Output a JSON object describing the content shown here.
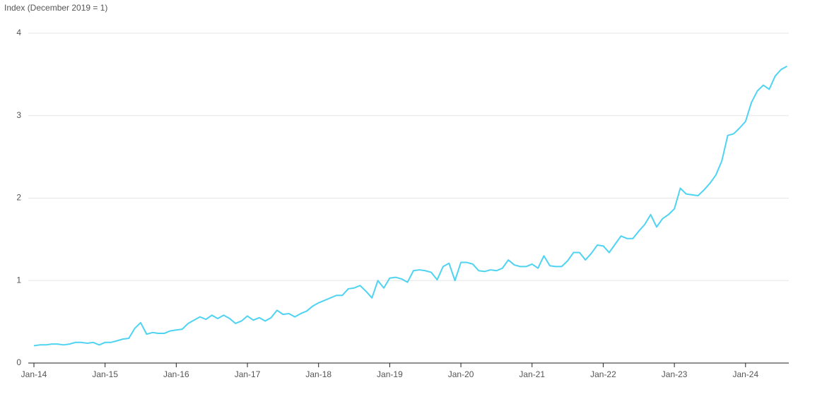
{
  "chart_data": {
    "type": "line",
    "y_axis_label": "Index (December 2019 = 1)",
    "categories": [
      "Jan-14",
      null,
      null,
      null,
      null,
      null,
      null,
      null,
      null,
      null,
      null,
      null,
      "Jan-15",
      null,
      null,
      null,
      null,
      null,
      null,
      null,
      null,
      null,
      null,
      null,
      "Jan-16",
      null,
      null,
      null,
      null,
      null,
      null,
      null,
      null,
      null,
      null,
      null,
      "Jan-17",
      null,
      null,
      null,
      null,
      null,
      null,
      null,
      null,
      null,
      null,
      null,
      "Jan-18",
      null,
      null,
      null,
      null,
      null,
      null,
      null,
      null,
      null,
      null,
      null,
      "Jan-19",
      null,
      null,
      null,
      null,
      null,
      null,
      null,
      null,
      null,
      null,
      null,
      "Jan-20",
      null,
      null,
      null,
      null,
      null,
      null,
      null,
      null,
      null,
      null,
      null,
      "Jan-21",
      null,
      null,
      null,
      null,
      null,
      null,
      null,
      null,
      null,
      null,
      null,
      "Jan-22",
      null,
      null,
      null,
      null,
      null,
      null,
      null,
      null,
      null,
      null,
      null,
      "Jan-23",
      null,
      null,
      null,
      null,
      null,
      null,
      null,
      null,
      null,
      null,
      null,
      "Jan-24",
      null,
      null,
      null,
      null,
      null,
      null,
      null
    ],
    "values": [
      0.21,
      0.22,
      0.22,
      0.23,
      0.23,
      0.22,
      0.23,
      0.25,
      0.25,
      0.24,
      0.25,
      0.22,
      0.25,
      0.25,
      0.27,
      0.29,
      0.3,
      0.42,
      0.49,
      0.35,
      0.37,
      0.36,
      0.36,
      0.39,
      0.4,
      0.41,
      0.48,
      0.52,
      0.56,
      0.53,
      0.58,
      0.54,
      0.58,
      0.54,
      0.48,
      0.51,
      0.57,
      0.52,
      0.55,
      0.51,
      0.55,
      0.64,
      0.59,
      0.6,
      0.56,
      0.6,
      0.63,
      0.69,
      0.73,
      0.76,
      0.79,
      0.82,
      0.82,
      0.9,
      0.91,
      0.94,
      0.87,
      0.79,
      1.0,
      0.91,
      1.03,
      1.04,
      1.02,
      0.98,
      1.12,
      1.13,
      1.12,
      1.1,
      1.01,
      1.17,
      1.21,
      1.0,
      1.22,
      1.22,
      1.2,
      1.12,
      1.11,
      1.13,
      1.12,
      1.15,
      1.25,
      1.19,
      1.17,
      1.17,
      1.2,
      1.15,
      1.3,
      1.18,
      1.17,
      1.17,
      1.24,
      1.34,
      1.34,
      1.25,
      1.33,
      1.43,
      1.42,
      1.34,
      1.44,
      1.54,
      1.51,
      1.51,
      1.6,
      1.68,
      1.8,
      1.65,
      1.75,
      1.8,
      1.87,
      2.12,
      2.05,
      2.04,
      2.03,
      2.1,
      2.18,
      2.28,
      2.45,
      2.76,
      2.78,
      2.85,
      2.93,
      3.16,
      3.3,
      3.37,
      3.32,
      3.48,
      3.56,
      3.6
    ],
    "color": "#4fd3f2",
    "ylim": [
      0,
      4
    ],
    "yticks": [
      0,
      1,
      2,
      3,
      4
    ],
    "grid": true
  }
}
